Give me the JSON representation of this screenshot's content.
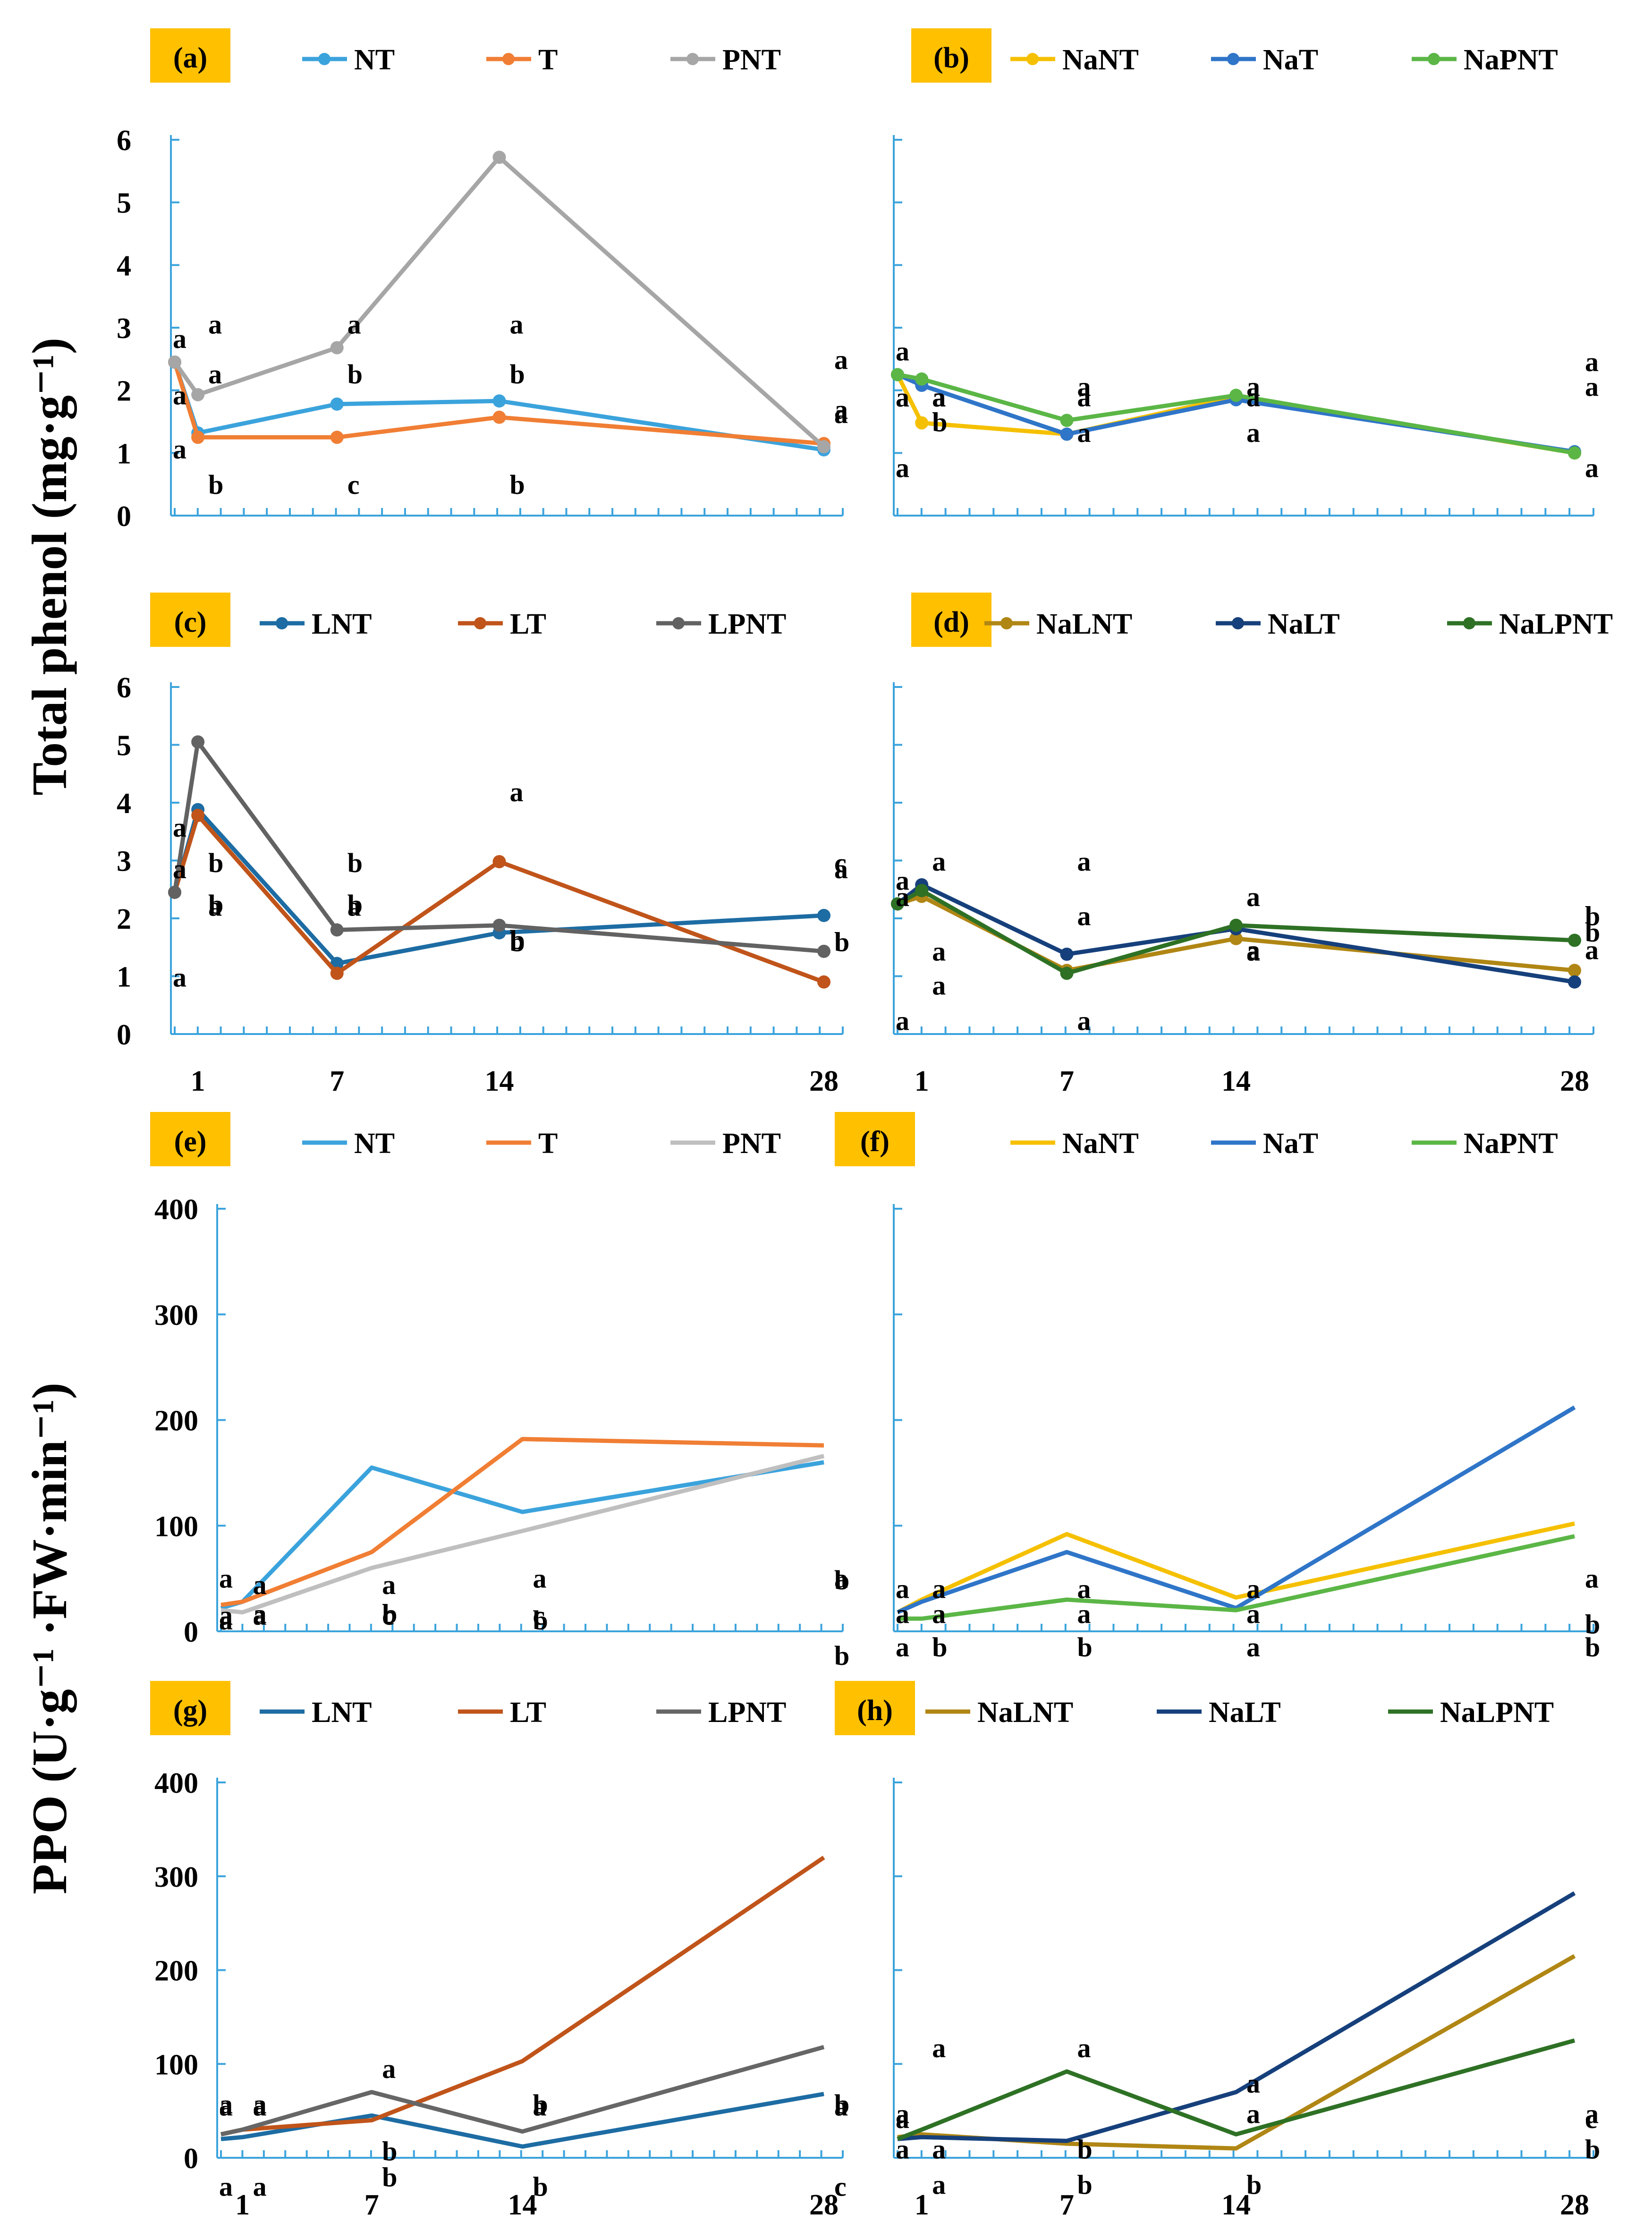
{
  "figure": {
    "ylabel_top": "Total phenol (mg·g⁻¹)",
    "ylabel_bottom": "PPO (U·g⁻¹ ·FW·min⁻¹)"
  },
  "chart_data": [
    {
      "id": "a",
      "panel_label": "(a)",
      "type": "line",
      "ylim": [
        0,
        6
      ],
      "yticks": [
        "0",
        "1",
        "2",
        "3",
        "4",
        "5",
        "6"
      ],
      "x": [
        0,
        1,
        7,
        14,
        28
      ],
      "xticks": [],
      "series": [
        {
          "name": "NT",
          "color": "#3ba3dc",
          "values": [
            2.45,
            1.32,
            1.78,
            1.83,
            1.05
          ],
          "letters": [
            "a",
            "a",
            "b",
            "b",
            "a"
          ]
        },
        {
          "name": "T",
          "color": "#f07e34",
          "values": [
            2.45,
            1.25,
            1.25,
            1.57,
            1.15
          ],
          "letters": [
            "a",
            "b",
            "c",
            "b",
            "a"
          ]
        },
        {
          "name": "PNT",
          "color": "#a6a6a6",
          "values": [
            2.45,
            1.93,
            2.68,
            5.72,
            1.1
          ],
          "letters": [
            "a",
            "a",
            "a",
            "a",
            "a"
          ]
        }
      ]
    },
    {
      "id": "b",
      "panel_label": "(b)",
      "type": "line",
      "ylim": [
        0,
        6
      ],
      "yticks": [],
      "x": [
        0,
        1,
        7,
        14,
        28
      ],
      "xticks": [],
      "series": [
        {
          "name": "NaNT",
          "color": "#f5c000",
          "values": [
            2.25,
            1.48,
            1.3,
            1.9,
            1.0
          ],
          "letters": [
            "a",
            "b",
            "a",
            "a",
            "a"
          ]
        },
        {
          "name": "NaT",
          "color": "#2f75c8",
          "values": [
            2.25,
            2.08,
            1.3,
            1.85,
            1.02
          ],
          "letters": [
            "a",
            "a",
            "a",
            "a",
            "a"
          ]
        },
        {
          "name": "NaPNT",
          "color": "#5bb646",
          "values": [
            2.25,
            2.18,
            1.52,
            1.92,
            1.0
          ],
          "letters": [
            "a",
            "a",
            "a",
            "a",
            "a"
          ]
        }
      ]
    },
    {
      "id": "c",
      "panel_label": "(c)",
      "type": "line",
      "ylim": [
        0,
        6
      ],
      "yticks": [
        "0",
        "1",
        "2",
        "3",
        "4",
        "5",
        "6"
      ],
      "x": [
        0,
        1,
        7,
        14,
        28
      ],
      "xticks": [
        "1",
        "7",
        "14",
        "28"
      ],
      "series": [
        {
          "name": "LNT",
          "color": "#1d6ca3",
          "values": [
            2.45,
            3.88,
            1.22,
            1.75,
            2.05
          ],
          "letters": [
            "a",
            "b",
            "b",
            "b",
            "a"
          ]
        },
        {
          "name": "LT",
          "color": "#c0541a",
          "values": [
            2.45,
            3.78,
            1.05,
            2.98,
            0.9
          ],
          "letters": [
            "a",
            "b",
            "b",
            "a",
            "c"
          ]
        },
        {
          "name": "LPNT",
          "color": "#626262",
          "values": [
            2.45,
            5.05,
            1.8,
            1.88,
            1.43
          ],
          "letters": [
            "a",
            "a",
            "a",
            "b",
            "b"
          ]
        }
      ]
    },
    {
      "id": "d",
      "panel_label": "(d)",
      "type": "line",
      "ylim": [
        0,
        6
      ],
      "yticks": [],
      "x": [
        0,
        1,
        7,
        14,
        28
      ],
      "xticks": [
        "1",
        "7",
        "14",
        "28"
      ],
      "series": [
        {
          "name": "NaLNT",
          "color": "#b08614",
          "values": [
            2.25,
            2.38,
            1.1,
            1.65,
            1.1
          ],
          "letters": [
            "a",
            "a",
            "a",
            "a",
            "b"
          ]
        },
        {
          "name": "NaLT",
          "color": "#16407b",
          "values": [
            2.25,
            2.58,
            1.38,
            1.82,
            0.9
          ],
          "letters": [
            "a",
            "a",
            "a",
            "a",
            "b"
          ]
        },
        {
          "name": "NaLPNT",
          "color": "#2e7125",
          "values": [
            2.25,
            2.48,
            1.05,
            1.88,
            1.62
          ],
          "letters": [
            "a",
            "a",
            "a",
            "a",
            "a"
          ]
        }
      ]
    },
    {
      "id": "e",
      "panel_label": "(e)",
      "type": "line",
      "ylim": [
        0,
        400
      ],
      "yticks": [
        "0",
        "100",
        "200",
        "300",
        "400"
      ],
      "x": [
        0,
        1,
        7,
        14,
        28
      ],
      "xticks": [],
      "series": [
        {
          "name": "NT",
          "color": "#3ba3dc",
          "values": [
            22,
            28,
            155,
            113,
            160
          ],
          "letters": [
            "a",
            "a",
            "a",
            "b",
            "b"
          ]
        },
        {
          "name": "T",
          "color": "#f07e34",
          "values": [
            25,
            28,
            75,
            182,
            176
          ],
          "letters": [
            "a",
            "a",
            "b",
            "a",
            "a"
          ]
        },
        {
          "name": "PNT",
          "color": "#bfbfbf",
          "values": [
            20,
            18,
            60,
            95,
            166
          ],
          "letters": [
            "a",
            "a",
            "c",
            "c",
            "b"
          ]
        }
      ]
    },
    {
      "id": "f",
      "panel_label": "(f)",
      "type": "line",
      "ylim": [
        0,
        400
      ],
      "yticks": [],
      "x": [
        0,
        1,
        7,
        14,
        28
      ],
      "xticks": [],
      "series": [
        {
          "name": "NaNT",
          "color": "#f5c000",
          "values": [
            18,
            30,
            92,
            32,
            102
          ],
          "letters": [
            "a",
            "a",
            "a",
            "a",
            "b"
          ]
        },
        {
          "name": "NaT",
          "color": "#2f75c8",
          "values": [
            18,
            28,
            75,
            22,
            212
          ],
          "letters": [
            "a",
            "a",
            "a",
            "a",
            "a"
          ]
        },
        {
          "name": "NaPNT",
          "color": "#5bb646",
          "values": [
            12,
            12,
            30,
            20,
            90
          ],
          "letters": [
            "a",
            "b",
            "b",
            "a",
            "b"
          ]
        }
      ]
    },
    {
      "id": "g",
      "panel_label": "(g)",
      "type": "line",
      "ylim": [
        0,
        400
      ],
      "yticks": [
        "0",
        "100",
        "200",
        "300",
        "400"
      ],
      "x": [
        0,
        1,
        7,
        14,
        28
      ],
      "xticks": [
        "1",
        "7",
        "14",
        "28"
      ],
      "series": [
        {
          "name": "LNT",
          "color": "#1d6ca3",
          "values": [
            20,
            22,
            45,
            12,
            68
          ],
          "letters": [
            "a",
            "a",
            "b",
            "b",
            "c"
          ]
        },
        {
          "name": "LT",
          "color": "#c0541a",
          "values": [
            25,
            30,
            40,
            103,
            320
          ],
          "letters": [
            "a",
            "a",
            "b",
            "a",
            "a"
          ]
        },
        {
          "name": "LPNT",
          "color": "#666666",
          "values": [
            25,
            30,
            70,
            28,
            118
          ],
          "letters": [
            "a",
            "a",
            "a",
            "b",
            "b"
          ]
        }
      ]
    },
    {
      "id": "h",
      "panel_label": "(h)",
      "type": "line",
      "ylim": [
        0,
        400
      ],
      "yticks": [],
      "x": [
        0,
        1,
        7,
        14,
        28
      ],
      "xticks": [
        "1",
        "7",
        "14",
        "28"
      ],
      "series": [
        {
          "name": "NaLNT",
          "color": "#b08614",
          "values": [
            22,
            25,
            15,
            10,
            215
          ],
          "letters": [
            "a",
            "a",
            "b",
            "b",
            "b"
          ]
        },
        {
          "name": "NaLT",
          "color": "#16407b",
          "values": [
            20,
            22,
            18,
            70,
            282
          ],
          "letters": [
            "a",
            "a",
            "b",
            "a",
            "a"
          ]
        },
        {
          "name": "NaLPNT",
          "color": "#2e7125",
          "values": [
            20,
            30,
            92,
            25,
            125
          ],
          "letters": [
            "a",
            "a",
            "a",
            "a",
            "c"
          ]
        }
      ]
    }
  ]
}
